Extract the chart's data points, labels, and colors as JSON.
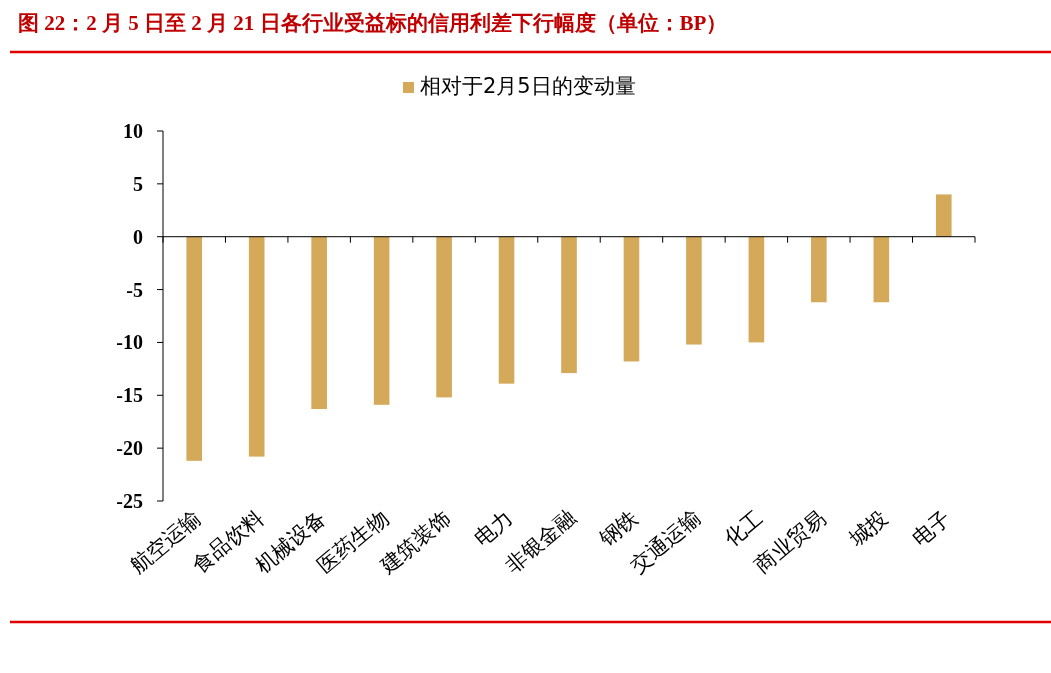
{
  "chart_data": {
    "type": "bar",
    "title": "图 22：2 月 5 日至 2 月 21 日各行业受益标的信用利差下行幅度（单位：BP）",
    "categories": [
      "航空运输",
      "食品饮料",
      "机械设备",
      "医药生物",
      "建筑装饰",
      "电力",
      "非银金融",
      "钢铁",
      "交通运输",
      "化工",
      "商业贸易",
      "城投",
      "电子"
    ],
    "series": [
      {
        "name": "相对于2月5日的变动量",
        "color": "#d4a95a",
        "values": [
          -21.2,
          -20.8,
          -16.3,
          -15.9,
          -15.2,
          -13.9,
          -12.9,
          -11.8,
          -10.2,
          -10.0,
          -6.2,
          -6.2,
          4.0
        ]
      }
    ],
    "ylim": [
      -25,
      10
    ],
    "yticks": [
      -25,
      -20,
      -15,
      -10,
      -5,
      0,
      5,
      10
    ],
    "legend": "top"
  }
}
